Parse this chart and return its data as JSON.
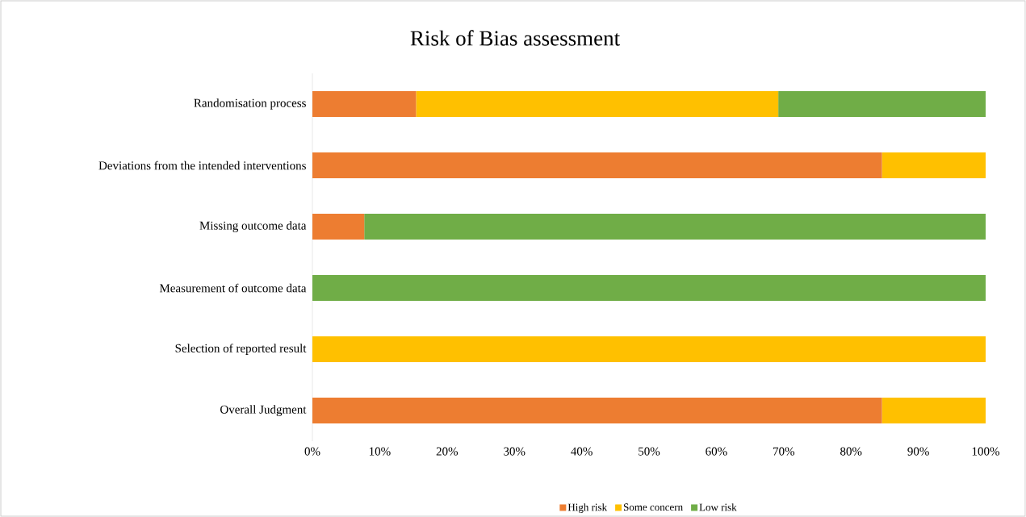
{
  "chart_data": {
    "type": "bar",
    "orientation": "horizontal",
    "stacked": true,
    "title": "Risk of Bias assessment",
    "categories": [
      "Randomisation process",
      "Deviations from the intended interventions",
      "Missing outcome data",
      "Measurement of outcome data",
      "Selection of reported result",
      "Overall Judgment"
    ],
    "series": [
      {
        "name": "High risk",
        "color": "#ed7d31",
        "values": [
          15.4,
          84.6,
          7.7,
          0,
          0,
          84.6
        ]
      },
      {
        "name": "Some concern",
        "color": "#ffc000",
        "values": [
          53.8,
          15.4,
          0,
          0,
          100,
          15.4
        ]
      },
      {
        "name": "Low  risk",
        "color": "#70ad47",
        "values": [
          30.8,
          0,
          92.3,
          100,
          0,
          0
        ]
      }
    ],
    "xlim": [
      0,
      100
    ],
    "xticks": [
      {
        "value": 0,
        "label": "0%"
      },
      {
        "value": 10,
        "label": "10%"
      },
      {
        "value": 20,
        "label": "20%"
      },
      {
        "value": 30,
        "label": "30%"
      },
      {
        "value": 40,
        "label": "40%"
      },
      {
        "value": 50,
        "label": "50%"
      },
      {
        "value": 60,
        "label": "60%"
      },
      {
        "value": 70,
        "label": "70%"
      },
      {
        "value": 80,
        "label": "80%"
      },
      {
        "value": 90,
        "label": "90%"
      },
      {
        "value": 100,
        "label": "100%"
      }
    ],
    "legend": "bottom",
    "grid": false
  }
}
